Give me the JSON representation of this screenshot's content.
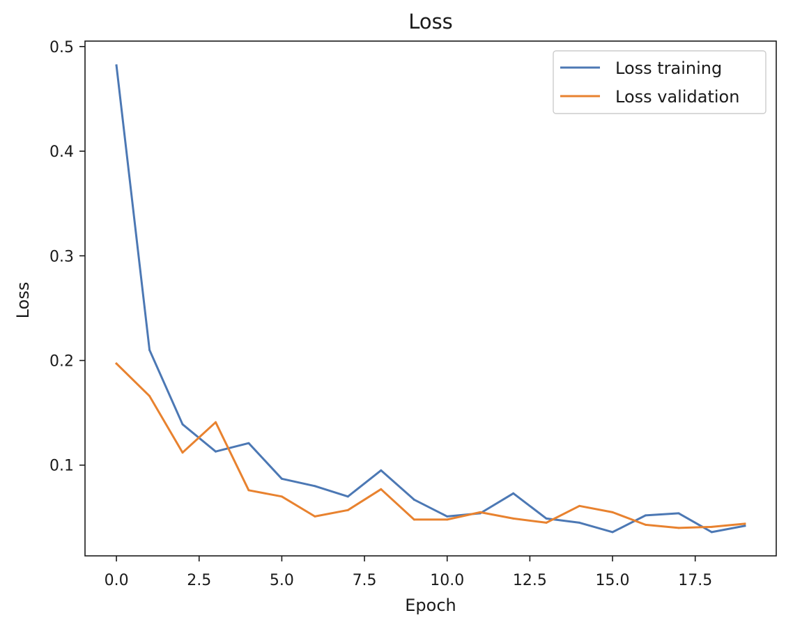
{
  "chart_data": {
    "type": "line",
    "title": "Loss",
    "xlabel": "Epoch",
    "ylabel": "Loss",
    "xlim": [
      -0.95,
      19.95
    ],
    "ylim": [
      0.0133,
      0.5052
    ],
    "xticks": [
      0,
      2.5,
      5,
      7.5,
      10,
      12.5,
      15,
      17.5
    ],
    "xtick_labels": [
      "0.0",
      "2.5",
      "5.0",
      "7.5",
      "10.0",
      "12.5",
      "15.0",
      "17.5"
    ],
    "yticks": [
      0.1,
      0.2,
      0.3,
      0.4,
      0.5
    ],
    "ytick_labels": [
      "0.1",
      "0.2",
      "0.3",
      "0.4",
      "0.5"
    ],
    "grid": false,
    "legend_position": "top-right",
    "x": [
      0,
      1,
      2,
      3,
      4,
      5,
      6,
      7,
      8,
      9,
      10,
      11,
      12,
      13,
      14,
      15,
      16,
      17,
      18,
      19
    ],
    "series": [
      {
        "name": "Loss training",
        "color": "#4c78b4",
        "values": [
          0.482,
          0.21,
          0.139,
          0.113,
          0.121,
          0.087,
          0.08,
          0.07,
          0.095,
          0.067,
          0.051,
          0.054,
          0.073,
          0.049,
          0.045,
          0.036,
          0.052,
          0.054,
          0.036,
          0.042
        ]
      },
      {
        "name": "Loss validation",
        "color": "#e8822f",
        "values": [
          0.197,
          0.166,
          0.112,
          0.141,
          0.076,
          0.07,
          0.051,
          0.057,
          0.077,
          0.048,
          0.048,
          0.055,
          0.049,
          0.045,
          0.061,
          0.055,
          0.043,
          0.04,
          0.041,
          0.044
        ]
      }
    ]
  }
}
